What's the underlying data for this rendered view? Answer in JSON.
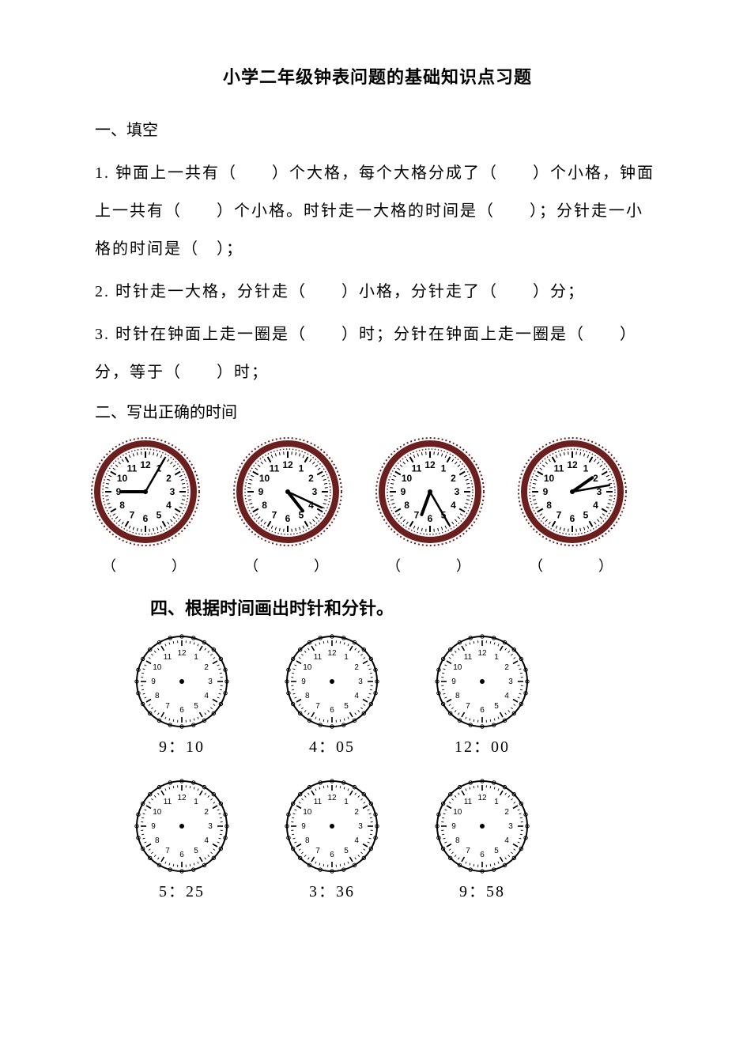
{
  "title": "小学二年级钟表问题的基础知识点习题",
  "section1_head": "一、填空",
  "q1": "1. 钟面上一共有（　　）个大格，每个大格分成了（　　）个小格，钟面上一共有（　　）个小格。时针走一大格的时间是（　　）；分针走一小格的时间是（　）；",
  "q2": "2. 时针走一大格，分针走（　　）小格，分针走了（　　）分；",
  "q3": "3. 时针在钟面上走一圈是（　　）时；分针在钟面上走一圈是（　　）分，等于（　　）时；",
  "section2_head": "二、写出正确的时间",
  "answer_blank": "（　　　）",
  "section4_head": "四、根据时间画出时针和分针。",
  "clocks_with_hands": [
    {
      "hour_angle": 270,
      "minute_angle": 30,
      "label": "（　　　）"
    },
    {
      "hour_angle": 142,
      "minute_angle": 115,
      "label": "（　　　）"
    },
    {
      "hour_angle": 200,
      "minute_angle": 150,
      "label": "（　　　）"
    },
    {
      "hour_angle": 55,
      "minute_angle": 80,
      "label": "（　　　）"
    }
  ],
  "blank_clocks_row1": [
    {
      "time": "9：10"
    },
    {
      "time": "4：05"
    },
    {
      "time": "12：00"
    }
  ],
  "blank_clocks_row2": [
    {
      "time": "5：25"
    },
    {
      "time": "3：36"
    },
    {
      "time": "9：58"
    }
  ],
  "style": {
    "rim_color": "#6b1f1f",
    "rim_width": 8,
    "face_color": "#ffffff",
    "tick_color": "#000000",
    "number_color": "#000000",
    "hand_color": "#000000",
    "clock_size": 140,
    "blank_rim_color": "#000000",
    "blank_size": 120
  },
  "numerals": [
    "12",
    "1",
    "2",
    "3",
    "4",
    "5",
    "6",
    "7",
    "8",
    "9",
    "10",
    "11"
  ]
}
